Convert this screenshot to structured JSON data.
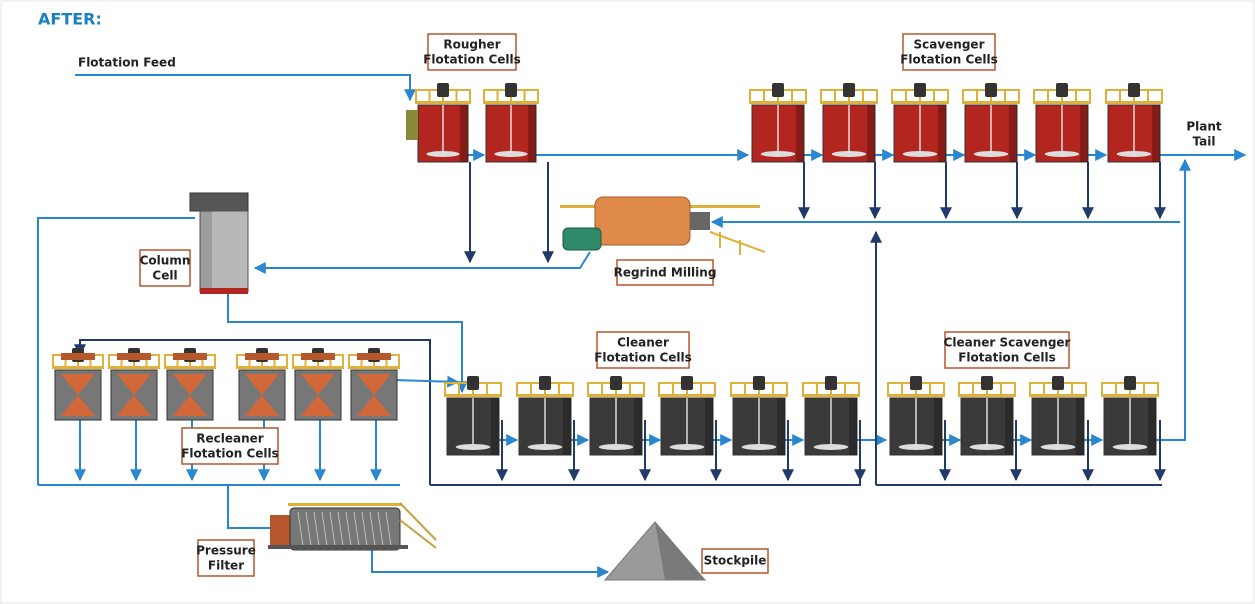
{
  "header": {
    "title": "AFTER:"
  },
  "labels": {
    "flotation_feed": [
      "Flotation Feed"
    ],
    "rougher": [
      "Rougher",
      "Flotation Cells"
    ],
    "scavenger": [
      "Scavenger",
      "Flotation Cells"
    ],
    "plant_tail": [
      "Plant",
      "Tail"
    ],
    "column_cell": [
      "Column",
      "Cell"
    ],
    "regrind_milling": [
      "Regrind Milling"
    ],
    "cleaner": [
      "Cleaner",
      "Flotation Cells"
    ],
    "cleaner_scavenger": [
      "Cleaner Scavenger",
      "Flotation Cells"
    ],
    "recleaner": [
      "Recleaner",
      "Flotation Cells"
    ],
    "pressure_filter": [
      "Pressure",
      "Filter"
    ],
    "stockpile": [
      "Stockpile"
    ]
  }
}
